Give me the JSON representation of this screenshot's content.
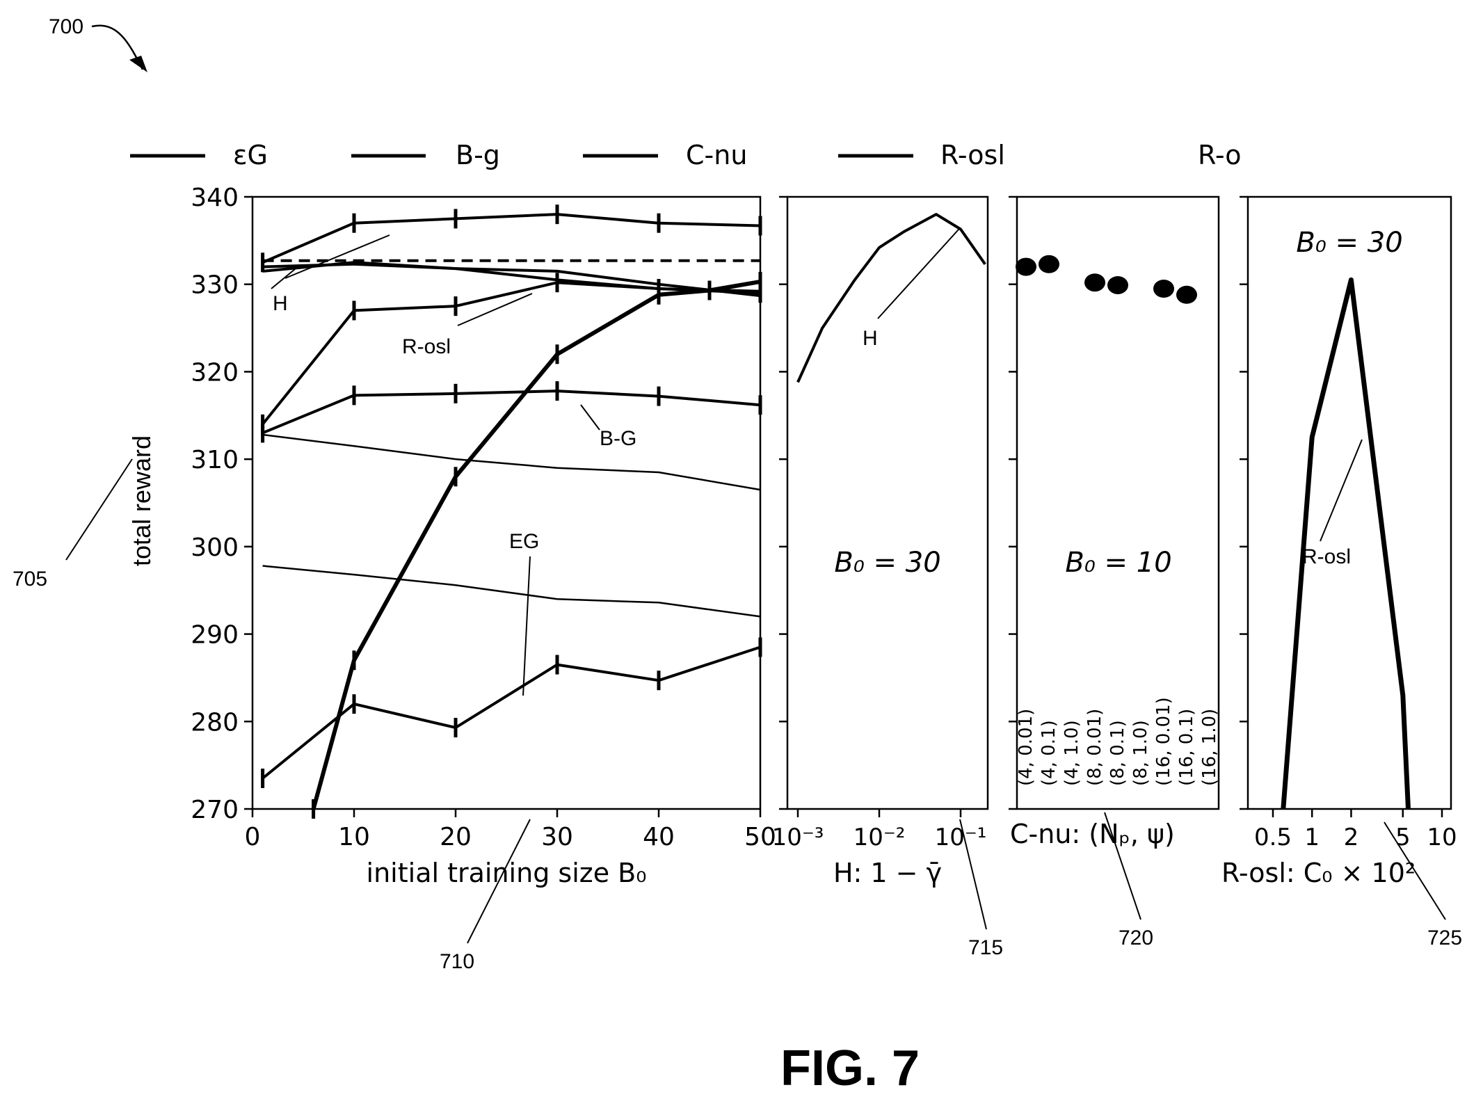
{
  "figure": {
    "ref_main": "700",
    "ref_ylabel": "705",
    "ref_panel1": "710",
    "ref_panel2": "715",
    "ref_panel3": "720",
    "ref_panel4": "725",
    "caption": "FIG. 7"
  },
  "legend": [
    "εG",
    "B-g",
    "C-nu",
    "R-osl",
    "R-o"
  ],
  "ylabel": "total reward",
  "chart_data": [
    {
      "type": "line",
      "id": "panel1",
      "xlabel": "initial training size B₀",
      "ylabel": "total reward",
      "xlim": [
        0,
        50
      ],
      "ylim": [
        270,
        340
      ],
      "xticks": [
        "0",
        "10",
        "20",
        "30",
        "40",
        "50"
      ],
      "yticks": [
        "270",
        "280",
        "290",
        "300",
        "310",
        "320",
        "330",
        "340"
      ],
      "annotations": [
        "H",
        "R-osl",
        "B-G",
        "EG"
      ],
      "series": [
        {
          "x": [
            1,
            10,
            20,
            30,
            40,
            50
          ],
          "values": [
            332.5,
            337,
            337.5,
            338,
            337,
            336.7
          ],
          "style": "solid",
          "errbars": true
        },
        {
          "x": [
            1,
            50
          ],
          "values": [
            332.7,
            332.7
          ],
          "style": "dashed"
        },
        {
          "x": [
            1,
            10,
            20,
            30,
            40,
            50
          ],
          "values": [
            332,
            332.3,
            331.8,
            331.5,
            330,
            328.7
          ],
          "style": "solid"
        },
        {
          "x": [
            1,
            10,
            20,
            30,
            40,
            50
          ],
          "values": [
            331.5,
            332.5,
            331.8,
            330.5,
            329.5,
            329.2
          ],
          "style": "solid"
        },
        {
          "x": [
            1,
            10,
            20,
            30,
            40,
            50
          ],
          "values": [
            314,
            327,
            327.5,
            330.2,
            329.5,
            329
          ],
          "style": "solid",
          "errbars": true
        },
        {
          "x": [
            1,
            10,
            20,
            30,
            40,
            50
          ],
          "values": [
            313,
            317.3,
            317.5,
            317.8,
            317.2,
            316.2
          ],
          "style": "solid",
          "errbars": true
        },
        {
          "x": [
            1,
            10,
            20,
            30,
            40,
            50
          ],
          "values": [
            312.8,
            311.5,
            310,
            309,
            308.5,
            306.5
          ],
          "style": "thin"
        },
        {
          "x": [
            1,
            10,
            20,
            30,
            40,
            50
          ],
          "values": [
            297.8,
            296.8,
            295.6,
            294,
            293.6,
            292
          ],
          "style": "thin"
        },
        {
          "x": [
            1,
            10,
            20,
            30,
            40,
            50
          ],
          "values": [
            273.5,
            282,
            279.3,
            286.5,
            284.7,
            288.5
          ],
          "style": "solid",
          "errbars": true
        },
        {
          "x": [
            6,
            10,
            20,
            30,
            40,
            45,
            50
          ],
          "values": [
            270,
            287,
            308,
            322,
            328.8,
            329.3,
            330.3
          ],
          "style": "thick",
          "errbars": true
        }
      ]
    },
    {
      "type": "line",
      "id": "panel2",
      "xlabel": "H: 1 − γ̄",
      "xscale": "log",
      "xticks": [
        "10⁻³",
        "10⁻²",
        "10⁻¹"
      ],
      "ylim": [
        270,
        340
      ],
      "annotation": "B₀ = 30",
      "label": "H",
      "series": [
        {
          "x": [
            0.001,
            0.002,
            0.005,
            0.01,
            0.02,
            0.05,
            0.1,
            0.2
          ],
          "values": [
            318.8,
            325,
            330.5,
            334.2,
            336,
            338,
            336.3,
            332.3
          ],
          "style": "solid"
        }
      ]
    },
    {
      "type": "scatter",
      "id": "panel3",
      "xlabel": "C-nu: (Nₚ, ψ)",
      "ylim": [
        270,
        340
      ],
      "annotation": "B₀ = 10",
      "categories": [
        "(4, 0.01)",
        "(4, 0.1)",
        "(4, 1.0)",
        "(8, 0.01)",
        "(8, 0.1)",
        "(8, 1.0)",
        "(16, 0.01)",
        "(16, 0.1)",
        "(16, 1.0)"
      ],
      "points": [
        {
          "category": "(4, 0.01)",
          "value": 332
        },
        {
          "category": "(4, 0.1)",
          "value": 332.3
        },
        {
          "category": "(8, 0.01)",
          "value": 330.2
        },
        {
          "category": "(8, 0.1)",
          "value": 329.9
        },
        {
          "category": "(16, 0.01)",
          "value": 329.5
        },
        {
          "category": "(16, 0.1)",
          "value": 328.8
        }
      ]
    },
    {
      "type": "line",
      "id": "panel4",
      "xlabel": "R-osl: C₀ × 10²",
      "xscale": "log",
      "xticks": [
        "0.5",
        "1",
        "2",
        "5",
        "10"
      ],
      "ylim": [
        270,
        340
      ],
      "annotation": "B₀ = 30",
      "label": "R-osl",
      "series": [
        {
          "x": [
            0.6,
            1,
            2,
            5,
            5.5
          ],
          "values": [
            270,
            312.5,
            330.5,
            283,
            270
          ],
          "style": "thick"
        }
      ]
    }
  ]
}
